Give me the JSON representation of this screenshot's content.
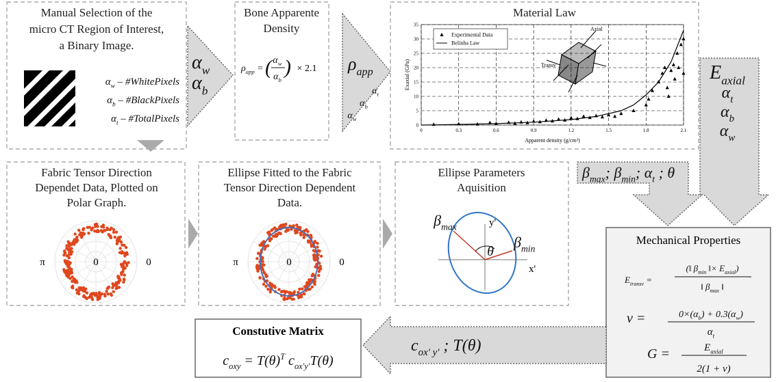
{
  "chart_data": {
    "type": "scatter",
    "title": "Material Law",
    "x_label": "Apparent density (g/cm³)",
    "y_label": "Exaxial (GPa)",
    "xlim": [
      0,
      2.1
    ],
    "ylim": [
      0,
      35
    ],
    "xticks": [
      0,
      0.3,
      0.6,
      0.9,
      1.2,
      1.5,
      1.8,
      2.1
    ],
    "yticks": [
      0,
      5,
      10,
      15,
      20,
      25,
      30,
      35
    ],
    "grid": true,
    "legend": "upper left",
    "annotations": [
      "Axial",
      "Transv"
    ],
    "series": [
      {
        "name": "Experimental Data",
        "type": "scatter",
        "color": "#000000",
        "x": [
          0.1,
          0.3,
          0.45,
          0.55,
          0.6,
          0.7,
          0.75,
          0.8,
          0.85,
          0.9,
          0.95,
          1,
          1.05,
          1.1,
          1.15,
          1.2,
          1.25,
          1.3,
          1.35,
          1.4,
          1.45,
          1.5,
          1.55,
          1.6,
          1.7,
          1.8,
          1.82,
          1.85,
          1.9,
          1.93,
          1.95,
          1.97,
          1.98,
          2,
          2.02,
          2.03,
          2.05,
          2.06,
          2.08,
          2.1,
          2.1
        ],
        "values": [
          0.2,
          0.4,
          0.3,
          0.8,
          0.5,
          0.9,
          0.6,
          1,
          0.8,
          1.3,
          1.1,
          1.6,
          1.4,
          2,
          1.7,
          2.5,
          2.2,
          3,
          2.6,
          3.2,
          2.8,
          3.5,
          3,
          4,
          5,
          7,
          9,
          12,
          15,
          18,
          20,
          13,
          10,
          19,
          21,
          16,
          25,
          20,
          28,
          30,
          18
        ]
      },
      {
        "name": "Belinha Law",
        "type": "line",
        "color": "#000000",
        "x": [
          0,
          0.3,
          0.6,
          0.9,
          1.2,
          1.4,
          1.6,
          1.7,
          1.8,
          1.9,
          2,
          2.1
        ],
        "values": [
          0,
          0.2,
          0.5,
          1,
          1.9,
          3,
          5,
          7,
          10.5,
          15,
          22,
          33
        ]
      }
    ]
  },
  "boxes": {
    "roi": {
      "title": [
        "Manual Selection of the",
        "micro CT Region of Interest,",
        "a Binary Image."
      ],
      "formulas": [
        [
          "α",
          {
            "sub": "w"
          },
          " – #WhitePixels"
        ],
        [
          "α",
          {
            "sub": "b"
          },
          " – #BlackPixels"
        ],
        [
          "α",
          {
            "sub": "t"
          },
          " – #TotalPixels"
        ]
      ]
    },
    "density": {
      "title": [
        "Bone Apparente",
        "Density"
      ],
      "lhs": [
        "ρ",
        {
          "sub": "app"
        },
        " ="
      ],
      "open": "(",
      "num": [
        "α",
        {
          "sub": "w"
        }
      ],
      "den": [
        "α",
        {
          "sub": "b"
        }
      ],
      "close": ")",
      "tail": "× 2.1"
    },
    "fabric": {
      "title": [
        "Fabric Tensor Direction",
        "Dependet Data, Plotted on",
        "Polar Graph."
      ],
      "labels": [
        "π",
        "0",
        "0"
      ]
    },
    "ellipse_fit": {
      "title": [
        "Ellipse Fitted to the Fabric",
        "Tensor Direction Dependent",
        "Data."
      ],
      "labels": [
        "π",
        "0",
        "0"
      ]
    },
    "ellipse_params": {
      "title": [
        "Ellipse Parameters",
        "Aquisition"
      ],
      "axes": [
        "y'",
        "x'"
      ],
      "beta_max": [
        "β",
        {
          "sub": "max"
        }
      ],
      "beta_min": [
        "β",
        {
          "sub": "min"
        }
      ],
      "theta": "θ"
    },
    "mechanical": {
      "title": "Mechanical Properties",
      "e_lhs": [
        "E",
        {
          "sub": "transv"
        },
        " ="
      ],
      "e_num": [
        "(‖ β",
        {
          "sub": "min"
        },
        " ‖× E",
        {
          "sub": "axial"
        },
        ")"
      ],
      "e_den": [
        "‖ β",
        {
          "sub": "max"
        },
        " ‖"
      ],
      "nu_lhs": "ν =",
      "nu_num": [
        "0×(α",
        {
          "sub": "b"
        },
        ") + 0.3(α",
        {
          "sub": "w"
        },
        ")"
      ],
      "nu_den": [
        "α",
        {
          "sub": "t"
        }
      ],
      "g_lhs": "G =",
      "g_num": [
        "E",
        {
          "sub": "axial"
        }
      ],
      "g_den": "2(1 + ν)"
    },
    "constitutive": {
      "title": "Constutive Matrix",
      "formula": [
        "c",
        {
          "sub": "oxy"
        },
        " = T(θ)",
        {
          "sup": "T"
        },
        " c",
        {
          "sub": "ox'y'"
        },
        "T(θ)"
      ]
    }
  },
  "arrows": {
    "roi_to_density": [
      [
        "α",
        {
          "sub": "w"
        }
      ],
      [
        "α",
        {
          "sub": "b"
        }
      ]
    ],
    "density_out": {
      "main": [
        "ρ",
        {
          "sub": "app"
        }
      ],
      "small": [
        [
          "α",
          {
            "sub": "t"
          }
        ],
        [
          "α",
          {
            "sub": "b"
          }
        ],
        [
          "α",
          {
            "sub": "w"
          }
        ]
      ]
    },
    "chart_out": [
      [
        "E",
        {
          "sub": "axial"
        }
      ],
      [
        "α",
        {
          "sub": "t"
        }
      ],
      [
        "α",
        {
          "sub": "b"
        }
      ],
      [
        "α",
        {
          "sub": "w"
        }
      ]
    ],
    "ellipse_out": [
      "β",
      {
        "sub": "max"
      },
      "; β",
      {
        "sub": "min"
      },
      "; α",
      {
        "sub": "t"
      },
      " ; θ"
    ],
    "to_matrix": [
      "c",
      {
        "sub": "ox' y'"
      },
      "  ;  T(θ)"
    ]
  }
}
